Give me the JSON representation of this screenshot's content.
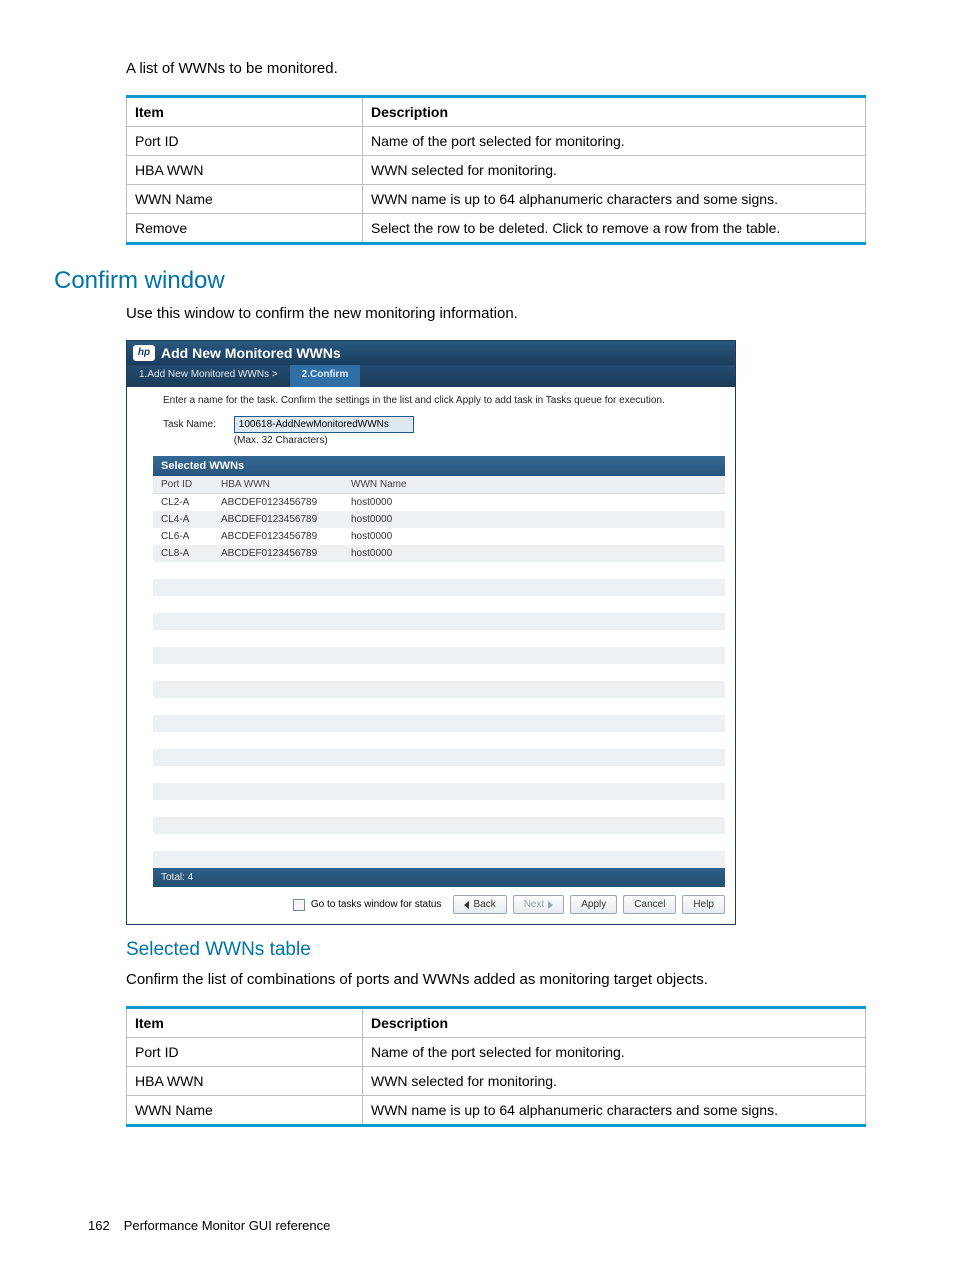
{
  "intro1": "A list of WWNs to be monitored.",
  "table1": {
    "headers": [
      "Item",
      "Description"
    ],
    "rows": [
      [
        "Port ID",
        "Name of the port selected for monitoring."
      ],
      [
        "HBA WWN",
        "WWN selected for monitoring."
      ],
      [
        "WWN Name",
        "WWN name is up to 64 alphanumeric characters and some signs."
      ],
      [
        "Remove",
        "Select the row to be deleted. Click to remove a row from the table."
      ]
    ]
  },
  "h2": "Confirm window",
  "intro2": "Use this window to confirm the new monitoring information.",
  "dialog": {
    "title": "Add New Monitored WWNs",
    "logo": "hp",
    "crumb1": "1.Add New Monitored WWNs  >",
    "crumb2": "2.Confirm",
    "instruction": "Enter a name for the task. Confirm the settings in the list and click Apply to add task in Tasks queue for execution.",
    "task_label": "Task Name:",
    "task_value": "100618-AddNewMonitoredWWNs",
    "task_hint": "(Max. 32 Characters)",
    "sel_header": "Selected WWNs",
    "cols": [
      "Port ID",
      "HBA WWN",
      "WWN Name"
    ],
    "rows": [
      [
        "CL2-A",
        "ABCDEF0123456789",
        "host0000"
      ],
      [
        "CL4-A",
        "ABCDEF0123456789",
        "host0000"
      ],
      [
        "CL6-A",
        "ABCDEF0123456789",
        "host0000"
      ],
      [
        "CL8-A",
        "ABCDEF0123456789",
        "host0000"
      ]
    ],
    "blank_rows": 18,
    "total_label": "Total:  4",
    "go_status": "Go to tasks window for status",
    "btn_back": "Back",
    "btn_next": "Next",
    "btn_apply": "Apply",
    "btn_cancel": "Cancel",
    "btn_help": "Help"
  },
  "h3": "Selected WWNs table",
  "intro3": "Confirm the list of combinations of ports and WWNs added as monitoring target objects.",
  "table2": {
    "headers": [
      "Item",
      "Description"
    ],
    "rows": [
      [
        "Port ID",
        "Name of the port selected for monitoring."
      ],
      [
        "HBA WWN",
        "WWN selected for monitoring."
      ],
      [
        "WWN Name",
        "WWN name is up to 64 alphanumeric characters and some signs."
      ]
    ]
  },
  "footer": {
    "page": "162",
    "title": "Performance Monitor GUI reference"
  }
}
